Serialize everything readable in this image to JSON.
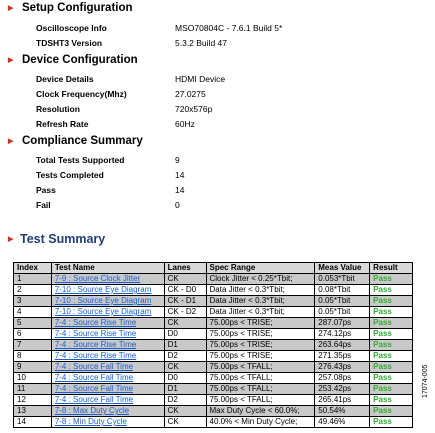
{
  "setup": {
    "title": "Setup Configuration",
    "items": [
      {
        "label": "Oscilloscope Info",
        "value": "MSO70804C - 7.6.1 Build 5*"
      },
      {
        "label": "TDSHT3 Version",
        "value": "5.3.2 Build 47"
      }
    ]
  },
  "device": {
    "title": "Device Configuration",
    "items": [
      {
        "label": "Device Details",
        "value": "HDMI Device"
      },
      {
        "label": "Clock Frequency(Mhz)",
        "value": "27.0275"
      },
      {
        "label": "Resolution",
        "value": "720x576p"
      },
      {
        "label": "Refresh Rate",
        "value": "60Hz"
      }
    ]
  },
  "compliance": {
    "title": "Compliance Summary",
    "items": [
      {
        "label": "Total Tests Supported",
        "value": "9"
      },
      {
        "label": "Tests Completed",
        "value": "14"
      },
      {
        "label": "Pass",
        "value": "14"
      },
      {
        "label": "Fail",
        "value": "0"
      }
    ]
  },
  "test_summary": {
    "title": "Test Summary",
    "headers": [
      "Index",
      "Test Name",
      "Lanes",
      "Spec Range",
      "Meas Value",
      "Result"
    ],
    "rows": [
      {
        "index": "1",
        "name": "7-9 : Source Clock Jitter",
        "lanes": "CK",
        "spec": "Clock Jitter < 0.25*Tbit;",
        "meas": "0.053*Tbit",
        "result": "Pass"
      },
      {
        "index": "2",
        "name": "7-10 : Source Eye Diagram",
        "lanes": "CK - D0",
        "spec": "Data Jitter < 0.3*Tbit;",
        "meas": "0.08*Tbit",
        "result": "Pass"
      },
      {
        "index": "3",
        "name": "7-10 : Source Eye Diagram",
        "lanes": "CK - D1",
        "spec": "Data Jitter < 0.3*Tbit;",
        "meas": "0.05*Tbit",
        "result": "Pass"
      },
      {
        "index": "4",
        "name": "7-10 : Source Eye Diagram",
        "lanes": "CK - D2",
        "spec": "Data Jitter < 0.3*Tbit;",
        "meas": "0.05*Tbit",
        "result": "Pass"
      },
      {
        "index": "5",
        "name": "7-4 : Source Rise Time",
        "lanes": "CK",
        "spec": "75.00ps < TRISE;",
        "meas": "287.07ps",
        "result": "Pass"
      },
      {
        "index": "6",
        "name": "7-4 : Source Rise Time",
        "lanes": "D0",
        "spec": "75.00ps < TRISE;",
        "meas": "274.12ps",
        "result": "Pass"
      },
      {
        "index": "7",
        "name": "7-4 : Source Rise Time",
        "lanes": "D1",
        "spec": "75.00ps < TRISE;",
        "meas": "263.64ps",
        "result": "Pass"
      },
      {
        "index": "8",
        "name": "7-4 : Source Rise Time",
        "lanes": "D2",
        "spec": "75.00ps < TRISE;",
        "meas": "271.35ps",
        "result": "Pass"
      },
      {
        "index": "9",
        "name": "7-4 : Source Fall Time",
        "lanes": "CK",
        "spec": "75.00ps < TFALL;",
        "meas": "276.43ps",
        "result": "Pass"
      },
      {
        "index": "10",
        "name": "7-4 : Source Fall Time",
        "lanes": "D0",
        "spec": "75.00ps < TFALL;",
        "meas": "257.08ps",
        "result": "Pass"
      },
      {
        "index": "11",
        "name": "7-4 : Source Fall Time",
        "lanes": "D1",
        "spec": "75.00ps < TFALL;",
        "meas": "253.42ps",
        "result": "Pass"
      },
      {
        "index": "12",
        "name": "7-4 : Source Fall Time",
        "lanes": "D2",
        "spec": "75.00ps < TFALL;",
        "meas": "265.41ps",
        "result": "Pass"
      },
      {
        "index": "13",
        "name": "7-8 : Max Duty Cycle",
        "lanes": "CK",
        "spec": "Max Duty Cycle < 60.0%;",
        "meas": "50.54%",
        "result": "Pass"
      },
      {
        "index": "14",
        "name": "7-8 : Min Duty Cycle",
        "lanes": "CK",
        "spec": "40.0% < Min Duty Cycle;",
        "meas": "49.46%",
        "result": "Pass"
      }
    ]
  },
  "figure_id": "17074-005"
}
